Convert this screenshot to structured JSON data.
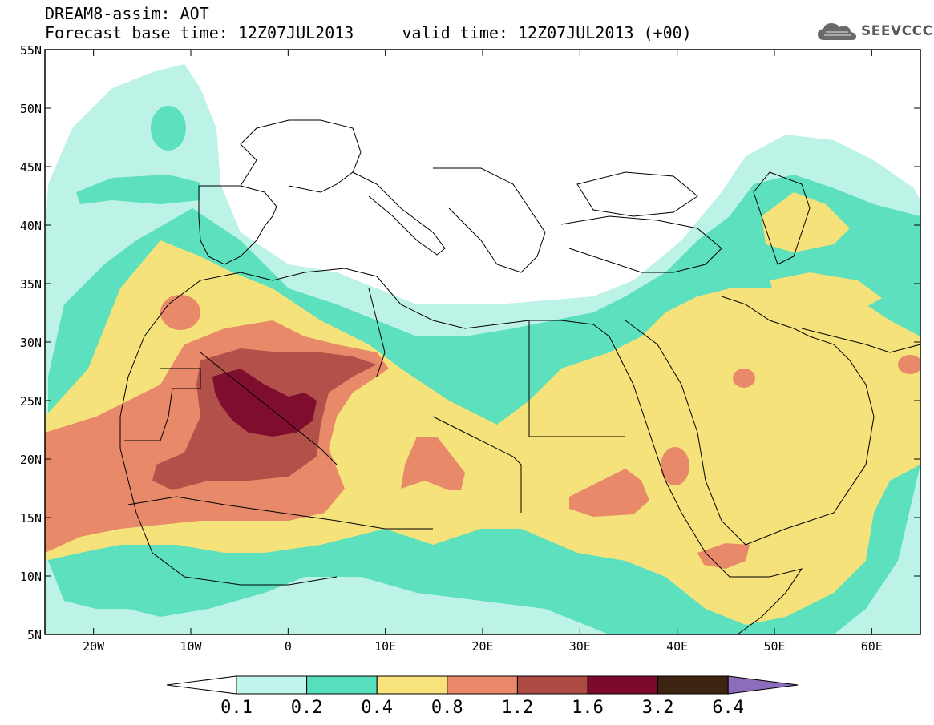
{
  "header": {
    "model_line": "DREAM8-assim: AOT",
    "base_time_line": "Forecast base time: 12Z07JUL2013     valid time: 12Z07JUL2013 (+00)"
  },
  "logo": {
    "text": "SEEVCCC",
    "icon": "cloud-icon"
  },
  "map": {
    "lat_ticks": [
      "55N",
      "50N",
      "45N",
      "40N",
      "35N",
      "30N",
      "25N",
      "20N",
      "15N",
      "10N",
      "5N"
    ],
    "lon_ticks": [
      "20W",
      "10W",
      "0",
      "10E",
      "20E",
      "30E",
      "40E",
      "50E",
      "60E"
    ],
    "lon_range": [
      -25,
      65
    ],
    "lat_range": [
      5,
      55
    ],
    "field_colors": {
      "0.1": "#bdf2e6",
      "0.2": "#5ce0bd",
      "0.4": "#f5e27a",
      "0.8": "#e8896a",
      "1.2": "#b2514a",
      "1.6": "#7e0d2e"
    }
  },
  "colorbar": {
    "labels": [
      "0.1",
      "0.2",
      "0.4",
      "0.8",
      "1.2",
      "1.6",
      "3.2",
      "6.4"
    ],
    "colors": [
      "#c1f4ea",
      "#56dfbd",
      "#f7e27c",
      "#e9896a",
      "#ad4b42",
      "#7d0a2d",
      "#3c2410",
      "#8b6dbb"
    ],
    "under_color": "#ffffff",
    "over_color": "#8b6dbb"
  }
}
